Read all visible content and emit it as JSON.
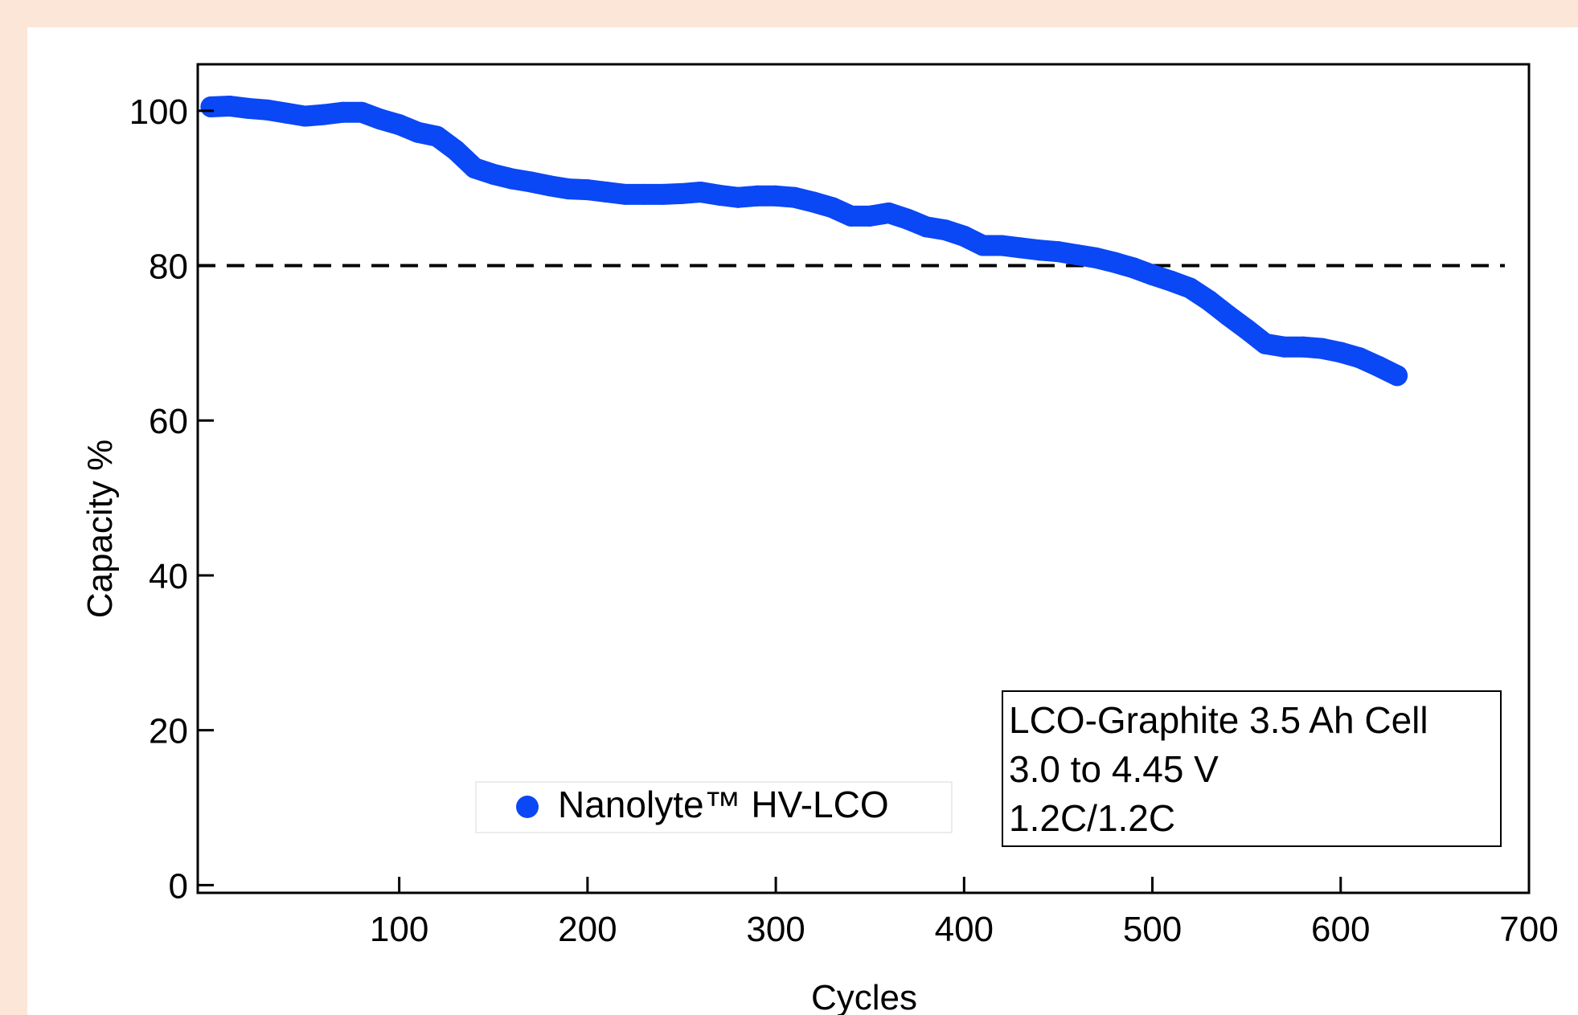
{
  "chart_data": {
    "type": "scatter",
    "xlabel": "Cycles",
    "ylabel": "Capacity %",
    "xlim": [
      -7,
      700
    ],
    "ylim": [
      -1,
      106
    ],
    "xticks": [
      100,
      200,
      300,
      400,
      500,
      600,
      700
    ],
    "yticks": [
      0,
      20,
      40,
      60,
      80,
      100
    ],
    "grid": false,
    "reference_line": {
      "y": 80,
      "style": "dashed"
    },
    "legend": {
      "placement": "bottom-center",
      "entries": [
        "Nanolyte™ HV-LCO"
      ]
    },
    "annotation": {
      "placement": "bottom-right",
      "lines": [
        "LCO-Graphite 3.5 Ah Cell",
        "3.0 to 4.45 V",
        "1.2C/1.2C"
      ]
    },
    "series": [
      {
        "name": "Nanolyte™ HV-LCO",
        "color": "#0a47f5",
        "x": [
          0,
          10,
          20,
          30,
          40,
          50,
          60,
          70,
          80,
          90,
          100,
          110,
          120,
          130,
          140,
          150,
          160,
          170,
          180,
          190,
          200,
          210,
          220,
          230,
          240,
          250,
          260,
          270,
          280,
          290,
          300,
          310,
          320,
          330,
          340,
          350,
          360,
          370,
          380,
          390,
          400,
          410,
          420,
          430,
          440,
          450,
          460,
          470,
          480,
          490,
          500,
          510,
          520,
          530,
          540,
          550,
          560,
          570,
          580,
          590,
          600,
          610,
          620,
          630
        ],
        "y": [
          100.5,
          100.6,
          100.3,
          100.1,
          99.7,
          99.3,
          99.5,
          99.8,
          99.8,
          98.9,
          98.2,
          97.2,
          96.7,
          94.9,
          92.6,
          91.8,
          91.2,
          90.8,
          90.3,
          89.9,
          89.8,
          89.5,
          89.2,
          89.2,
          89.2,
          89.3,
          89.5,
          89.1,
          88.8,
          89.0,
          89.0,
          88.8,
          88.2,
          87.5,
          86.4,
          86.4,
          86.8,
          86.0,
          85.0,
          84.6,
          83.8,
          82.6,
          82.6,
          82.3,
          82.0,
          81.8,
          81.4,
          81.0,
          80.4,
          79.7,
          78.8,
          78.0,
          77.1,
          75.5,
          73.6,
          71.8,
          69.9,
          69.5,
          69.5,
          69.3,
          68.8,
          68.1,
          67.0,
          65.8
        ]
      }
    ]
  }
}
